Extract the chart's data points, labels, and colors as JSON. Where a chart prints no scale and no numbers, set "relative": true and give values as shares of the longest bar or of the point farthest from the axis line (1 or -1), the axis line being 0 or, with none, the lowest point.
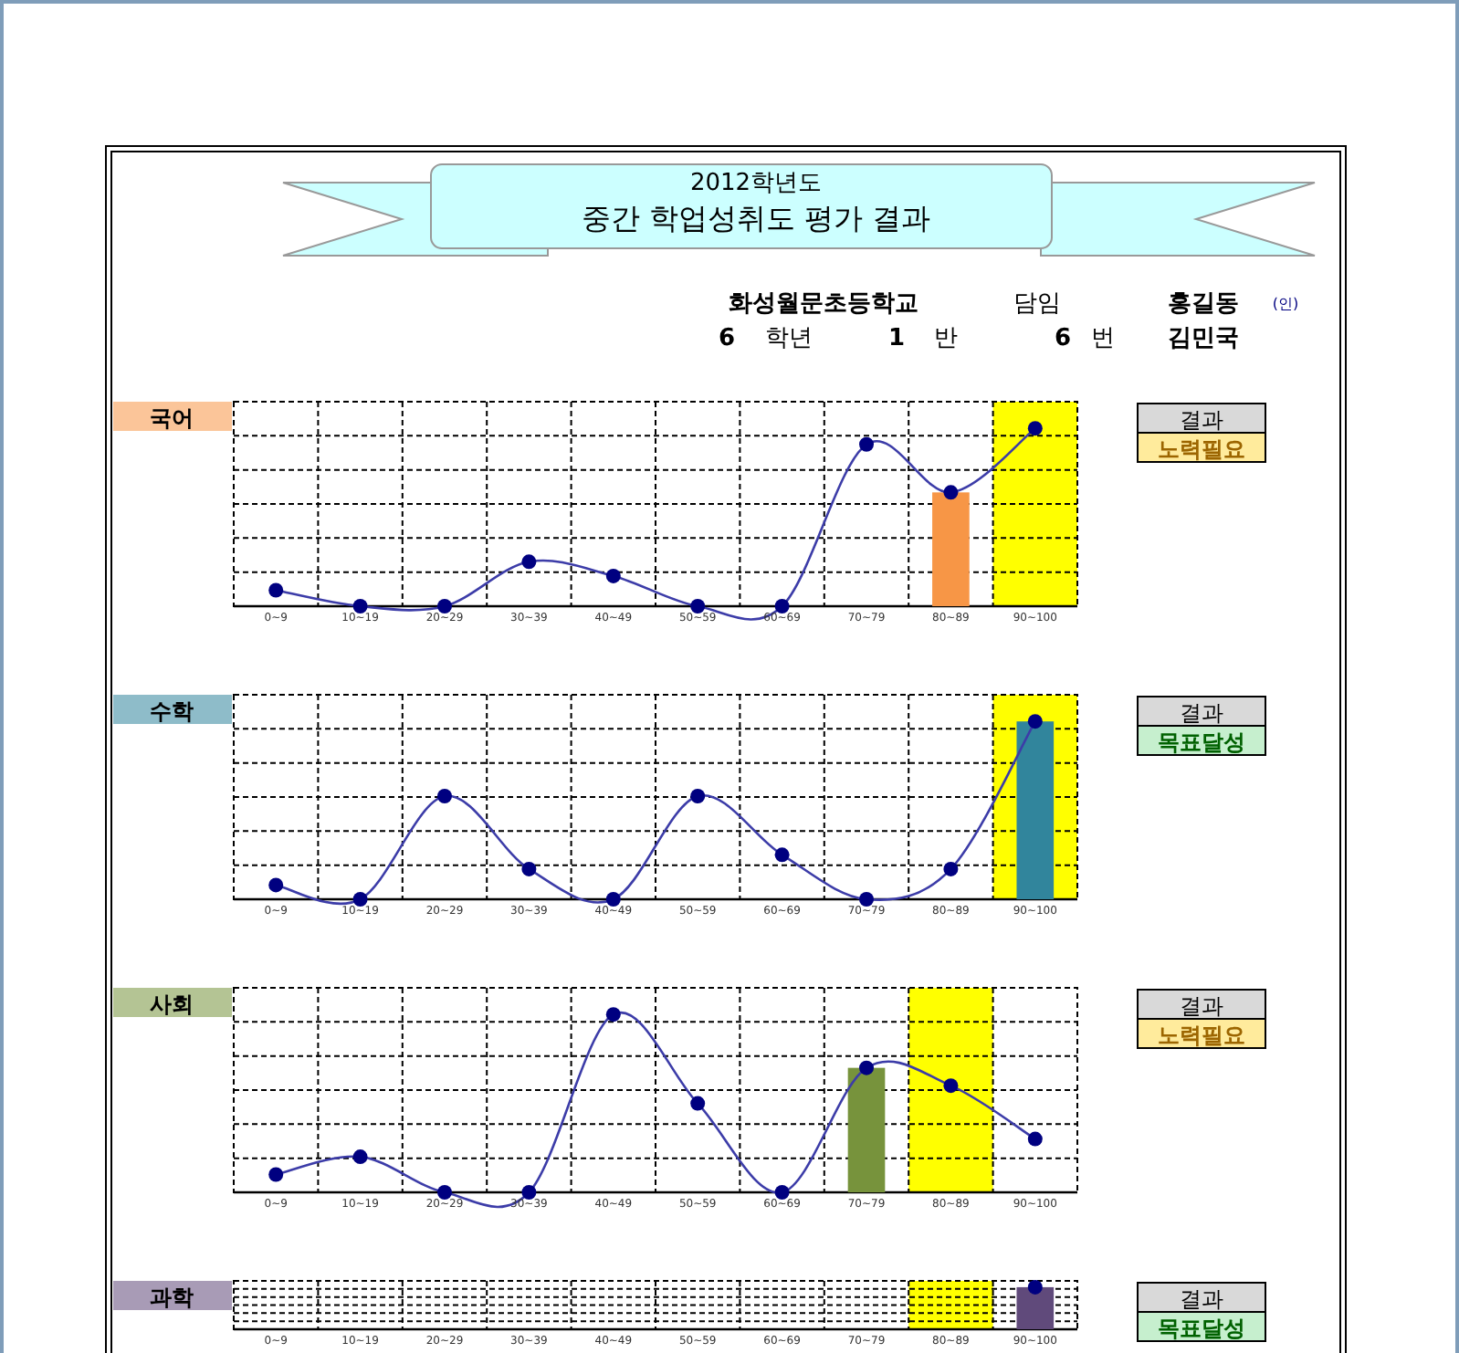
{
  "chart_data": [
    {
      "type": "other",
      "title": "중간 학업성취도 평가 결과",
      "subtitle": "2012학년도",
      "annotations": [
        "화성월문초등학교",
        "담임",
        "홍길동",
        "(인)",
        "6",
        "학년",
        "1",
        "반",
        "6",
        "번",
        "김민국"
      ]
    },
    {
      "type": "line",
      "title": "국어",
      "relative": true,
      "grid": true,
      "marker": "circle",
      "categories": [
        "0~9",
        "10~19",
        "20~29",
        "30~39",
        "40~49",
        "50~59",
        "60~69",
        "70~79",
        "80~89",
        "90~100"
      ],
      "series": [
        {
          "type": "bar",
          "color": "#f79646",
          "values": [
            null,
            null,
            null,
            null,
            null,
            null,
            null,
            null,
            0.64,
            null
          ]
        },
        {
          "type": "line",
          "color": "#000080",
          "values": [
            0.09,
            0,
            0,
            0.25,
            0.17,
            0,
            0,
            0.91,
            0.64,
            1
          ]
        }
      ],
      "bands": [
        {
          "axis": "x",
          "from": "90~100",
          "to": "90~100",
          "color": "#ffff00"
        }
      ],
      "annotations": [
        "결과",
        "노력필요"
      ]
    },
    {
      "type": "line",
      "title": "수학",
      "relative": true,
      "grid": true,
      "marker": "circle",
      "categories": [
        "0~9",
        "10~19",
        "20~29",
        "30~39",
        "40~49",
        "50~59",
        "60~69",
        "70~79",
        "80~89",
        "90~100"
      ],
      "series": [
        {
          "type": "bar",
          "color": "#31859c",
          "values": [
            null,
            null,
            null,
            null,
            null,
            null,
            null,
            null,
            null,
            1
          ]
        },
        {
          "type": "line",
          "color": "#000080",
          "values": [
            0.08,
            0,
            0.58,
            0.17,
            0,
            0.58,
            0.25,
            0,
            0.17,
            1
          ]
        }
      ],
      "bands": [
        {
          "axis": "x",
          "from": "90~100",
          "to": "90~100",
          "color": "#ffff00"
        }
      ],
      "annotations": [
        "결과",
        "목표달성"
      ]
    },
    {
      "type": "line",
      "title": "사회",
      "relative": true,
      "grid": true,
      "marker": "circle",
      "categories": [
        "0~9",
        "10~19",
        "20~29",
        "30~39",
        "40~49",
        "50~59",
        "60~69",
        "70~79",
        "80~89",
        "90~100"
      ],
      "series": [
        {
          "type": "bar",
          "color": "#77933c",
          "values": [
            null,
            null,
            null,
            null,
            null,
            null,
            null,
            0.7,
            null,
            null
          ]
        },
        {
          "type": "line",
          "color": "#000080",
          "values": [
            0.1,
            0.2,
            0,
            0,
            1,
            0.5,
            0,
            0.7,
            0.6,
            0.3
          ]
        }
      ],
      "bands": [
        {
          "axis": "x",
          "from": "80~89",
          "to": "80~89",
          "color": "#ffff00"
        }
      ],
      "annotations": [
        "결과",
        "노력필요"
      ]
    },
    {
      "type": "line",
      "title": "과학",
      "relative": true,
      "grid": true,
      "marker": "circle",
      "categories": [
        "0~9",
        "10~19",
        "20~29",
        "30~39",
        "40~49",
        "50~59",
        "60~69",
        "70~79",
        "80~89",
        "90~100"
      ],
      "series": [
        {
          "type": "bar",
          "color": "#604a7b",
          "values": [
            null,
            null,
            null,
            null,
            null,
            null,
            null,
            null,
            null,
            1
          ]
        },
        {
          "type": "line",
          "color": "#000080",
          "values": [
            null,
            null,
            null,
            null,
            null,
            null,
            null,
            null,
            null,
            1
          ]
        }
      ],
      "bands": [
        {
          "axis": "x",
          "from": "80~89",
          "to": "80~89",
          "color": "#ffff00"
        }
      ],
      "annotations": [
        "결과",
        "목표달성"
      ]
    }
  ]
}
